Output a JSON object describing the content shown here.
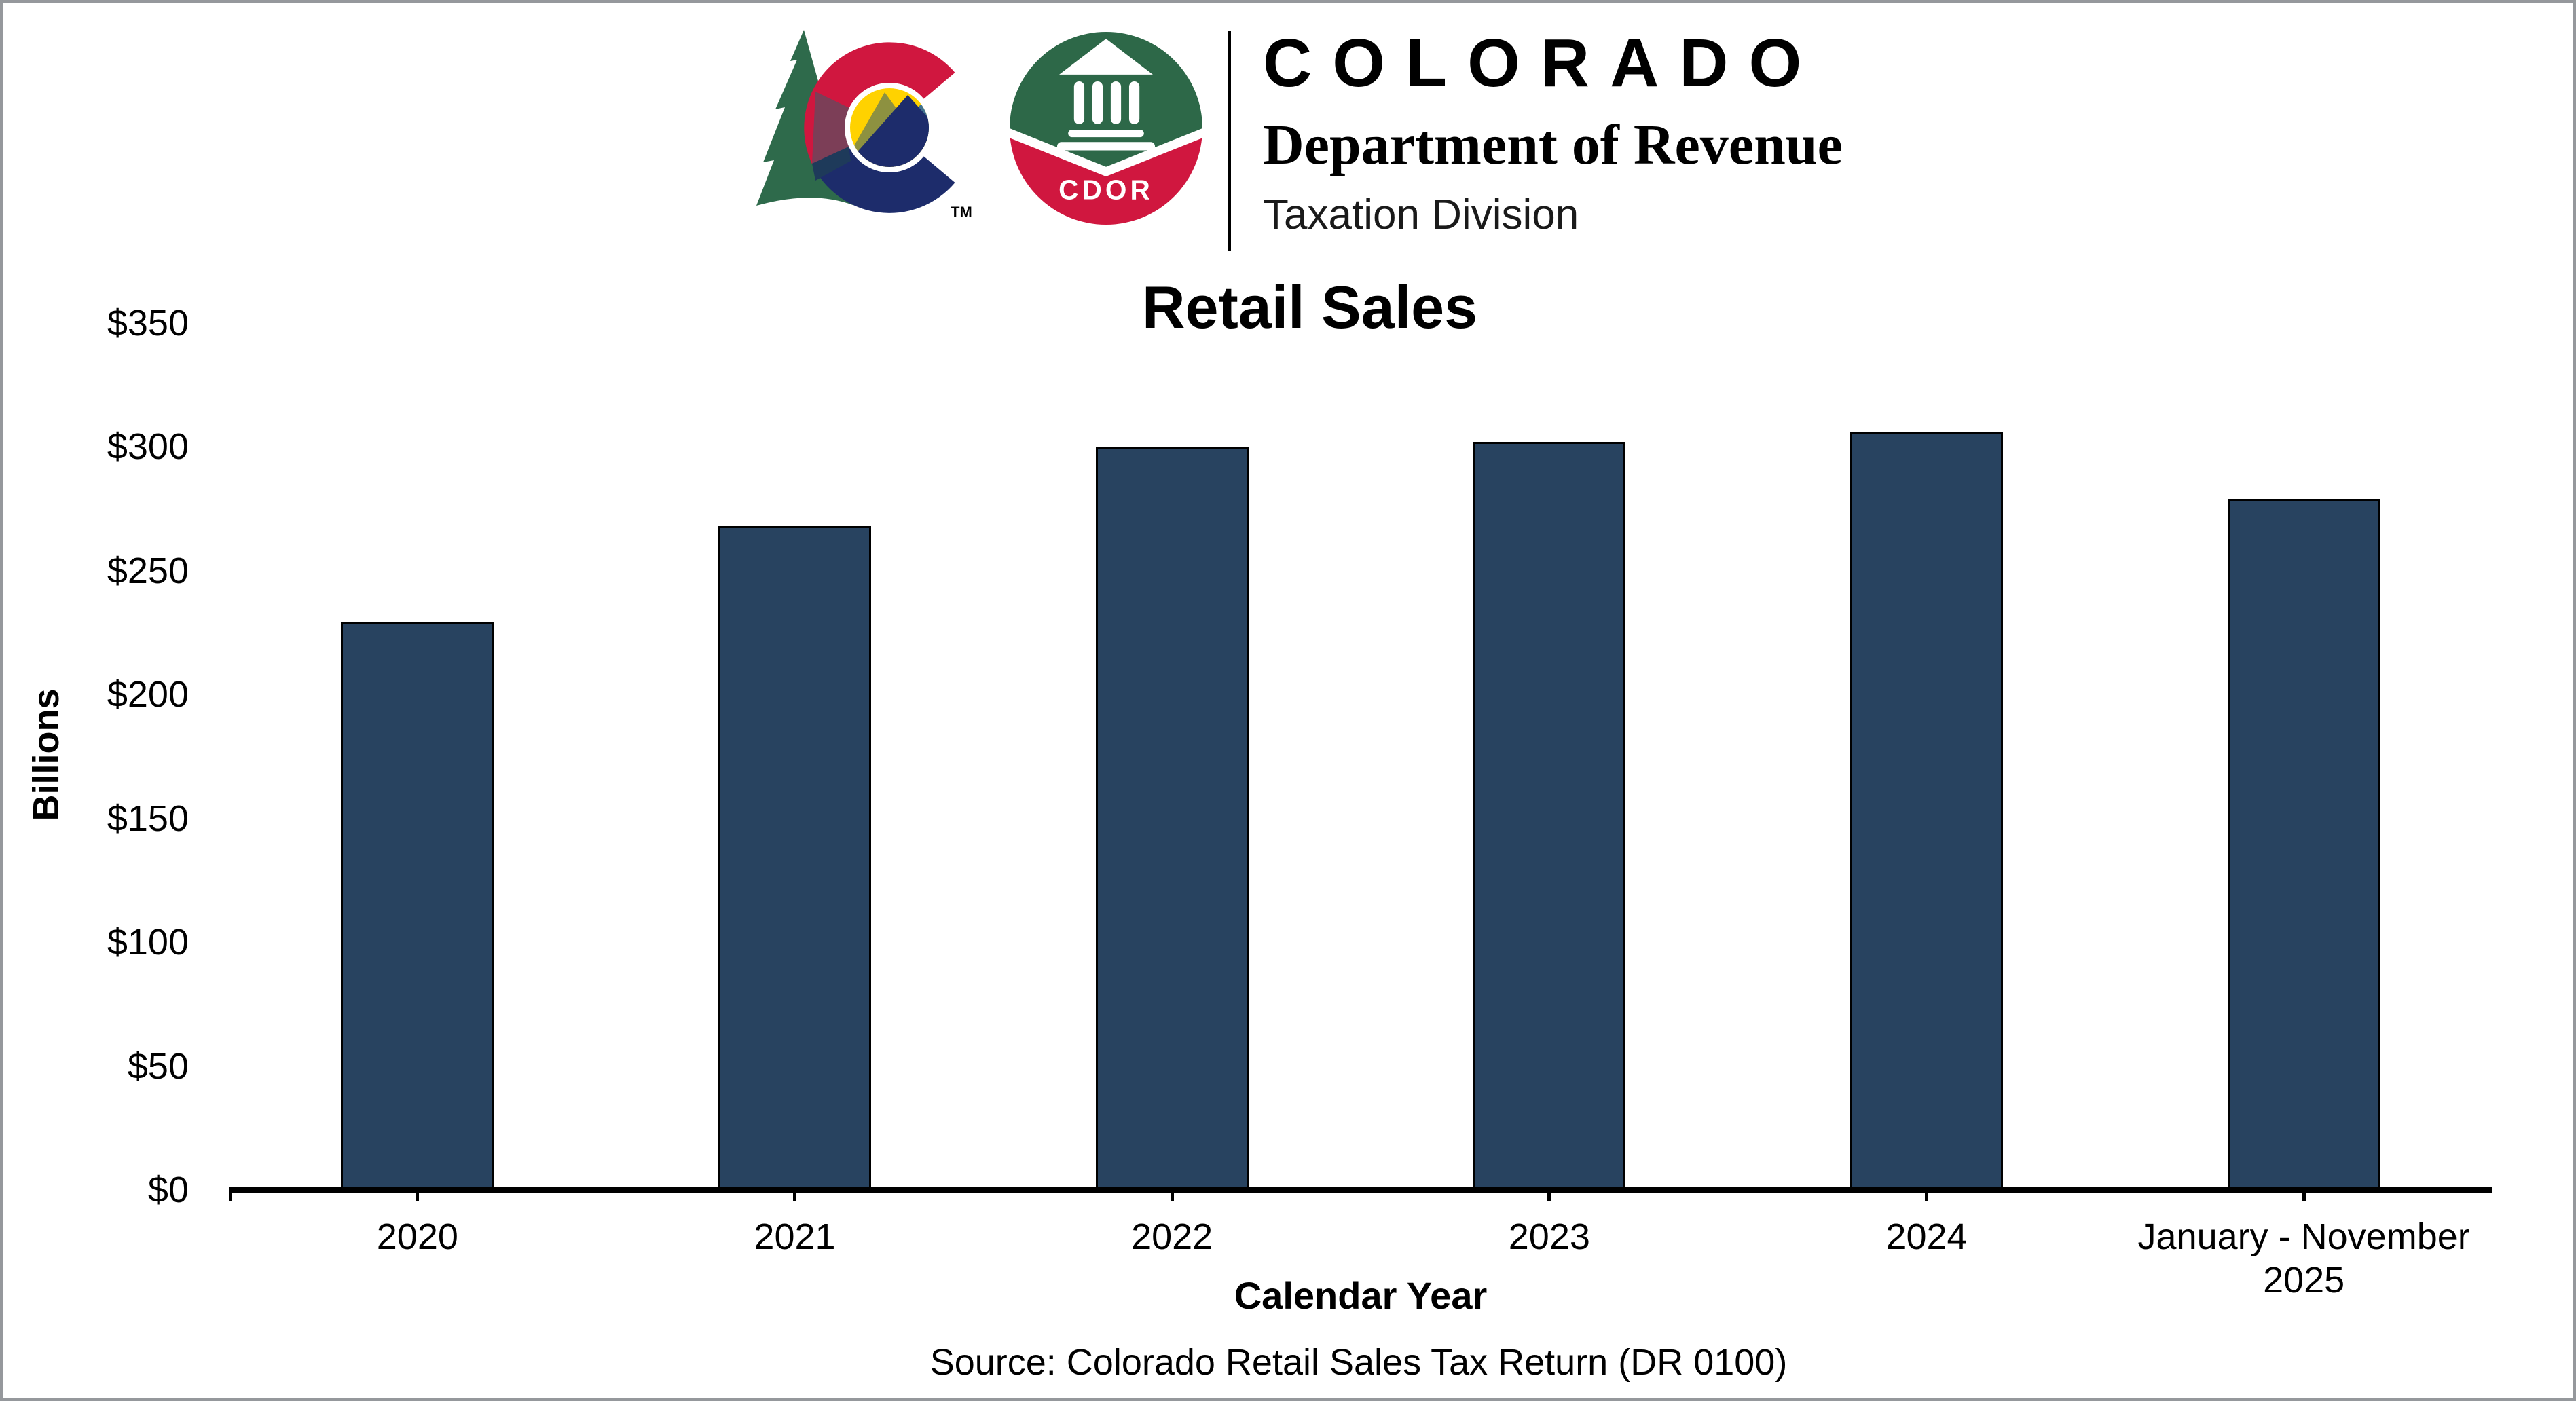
{
  "header": {
    "brand_title": "COLORADO",
    "brand_subtitle": "Department of Revenue",
    "brand_division": "Taxation Division",
    "cdor_badge_text": "CDOR",
    "trademark": "TM",
    "brand_colors": {
      "green": "#2d6848",
      "red": "#d0173f",
      "navy": "#1d2c6b",
      "yellow": "#ffd200",
      "olive": "#8d9140",
      "slate_blue": "#41718e",
      "maroon_overlap": "#7c3e57",
      "dark_overlap": "#1e3a5a"
    }
  },
  "chart_data": {
    "type": "bar",
    "title": "Retail Sales",
    "ylabel": "Billions",
    "xlabel": "Calendar Year",
    "categories": [
      "2020",
      "2021",
      "2022",
      "2023",
      "2024",
      "January - November\n2025"
    ],
    "values": [
      229,
      268,
      300,
      302,
      306,
      279
    ],
    "unit": "USD billions",
    "ylim": [
      0,
      350
    ],
    "y_tick_interval": 50,
    "y_tick_labels": [
      "$0",
      "$50",
      "$100",
      "$150",
      "$200",
      "$250",
      "$300",
      "$350"
    ],
    "bar_color": "#284360",
    "bar_border_color": "#000000",
    "axis_color": "#000000",
    "gridlines": false,
    "legend": "none"
  },
  "source_note": "Source: Colorado Retail Sales Tax Return (DR 0100)"
}
